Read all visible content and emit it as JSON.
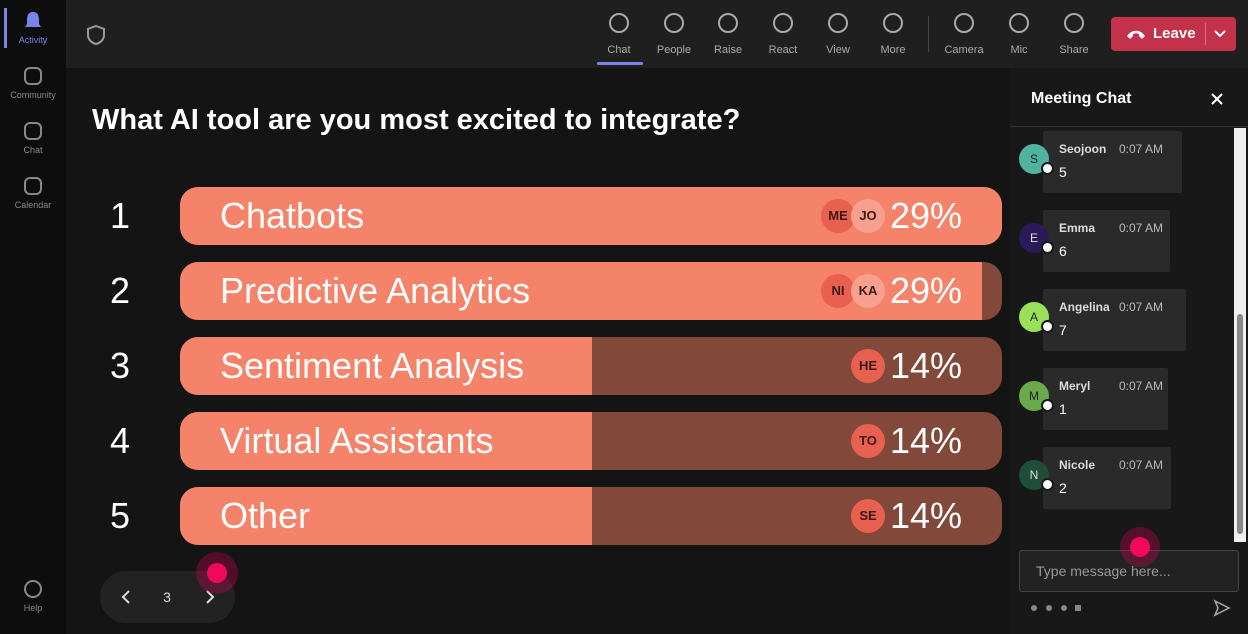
{
  "sidebar": {
    "items": [
      "Activity",
      "Community",
      "Chat",
      "Calendar"
    ],
    "help": "Help"
  },
  "toolbar": {
    "buttons": [
      "Chat",
      "People",
      "Raise",
      "React",
      "View",
      "More"
    ],
    "devices": [
      "Camera",
      "Mic",
      "Share"
    ],
    "leave": "Leave"
  },
  "poll": {
    "question": "What AI tool are you most excited to integrate?",
    "options": [
      {
        "rank": 1,
        "label": "Chatbots",
        "voters": [
          "ME",
          "JO"
        ],
        "percent": "29%"
      },
      {
        "rank": 2,
        "label": "Predictive Analytics",
        "voters": [
          "NI",
          "KA"
        ],
        "percent": "29%"
      },
      {
        "rank": 3,
        "label": "Sentiment Analysis",
        "voters": [
          "HE"
        ],
        "percent": "14%"
      },
      {
        "rank": 4,
        "label": "Virtual Assistants",
        "voters": [
          "TO"
        ],
        "percent": "14%"
      },
      {
        "rank": 5,
        "label": "Other",
        "voters": [
          "SE"
        ],
        "percent": "14%"
      }
    ]
  },
  "pagination": {
    "page": 3
  },
  "chat": {
    "title": "Meeting Chat",
    "messages": [
      {
        "initial": "S",
        "name": "Seojoon",
        "time": "0:07 AM",
        "text": 5
      },
      {
        "initial": "E",
        "name": "Emma",
        "time": "0:07 AM",
        "text": 6
      },
      {
        "initial": "A",
        "name": "Angelina",
        "time": "0:07 AM",
        "text": 7
      },
      {
        "initial": "M",
        "name": "Meryl",
        "time": "0:07 AM",
        "text": 1
      },
      {
        "initial": "N",
        "name": "Nicole",
        "time": "0:07 AM",
        "text": 2
      }
    ],
    "placeholder": "Type message here..."
  }
}
